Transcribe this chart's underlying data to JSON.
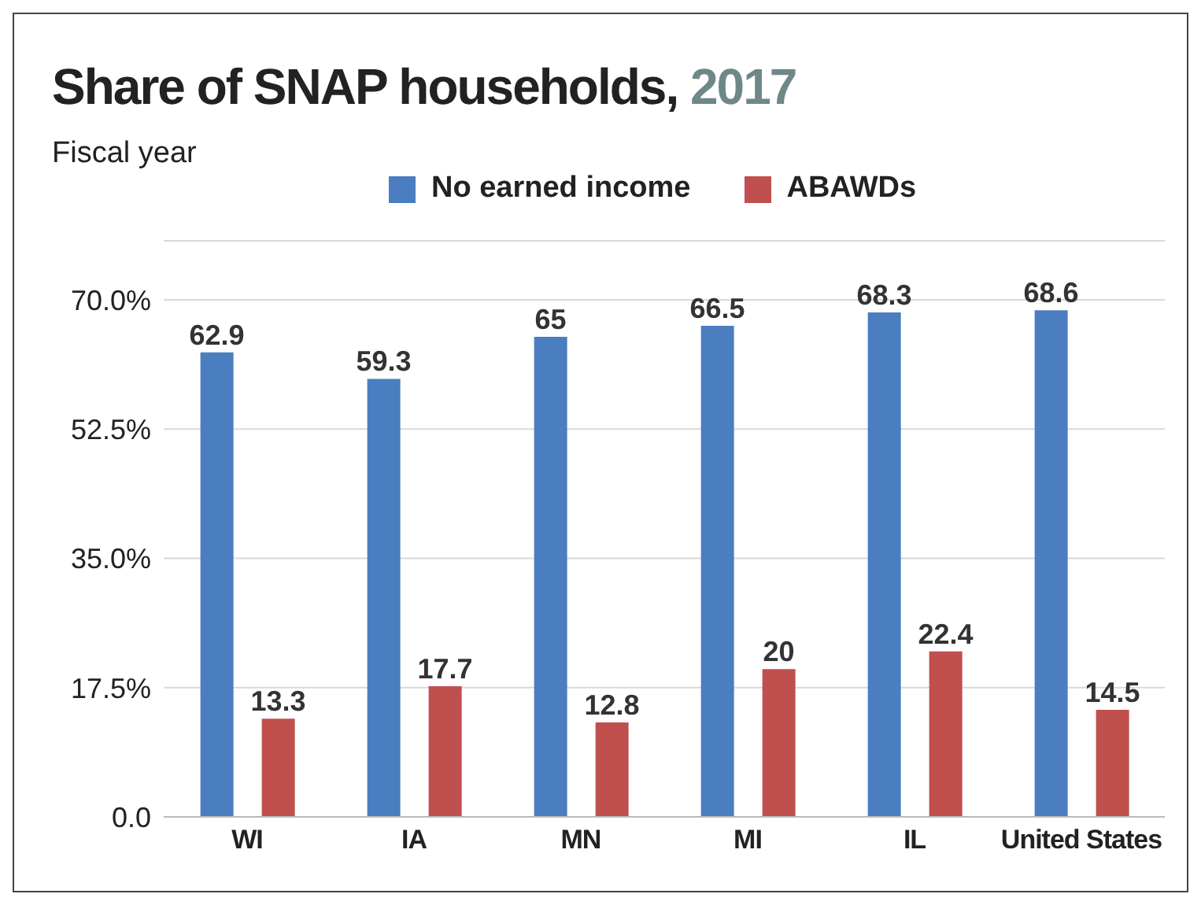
{
  "chart_data": {
    "type": "bar",
    "title": "Share of SNAP households, 2017",
    "subtitle": "Fiscal year",
    "categories": [
      "WI",
      "IA",
      "MN",
      "MI",
      "IL",
      "United States"
    ],
    "series": [
      {
        "name": "No earned income",
        "color": "#4a7ec0",
        "values": [
          62.9,
          59.3,
          65,
          66.5,
          68.3,
          68.6
        ]
      },
      {
        "name": "ABAWDs",
        "color": "#c0504d",
        "values": [
          13.3,
          17.7,
          12.8,
          20,
          22.4,
          14.5
        ]
      }
    ],
    "ylim": [
      0,
      78
    ],
    "yticks": [
      {
        "value": 0,
        "label": "0.0"
      },
      {
        "value": 17.5,
        "label": "17.5%"
      },
      {
        "value": 35,
        "label": "35.0%"
      },
      {
        "value": 52.5,
        "label": "52.5%"
      },
      {
        "value": 70,
        "label": "70.0%"
      }
    ],
    "grid": "y",
    "legend": "top",
    "data_labels": true
  }
}
